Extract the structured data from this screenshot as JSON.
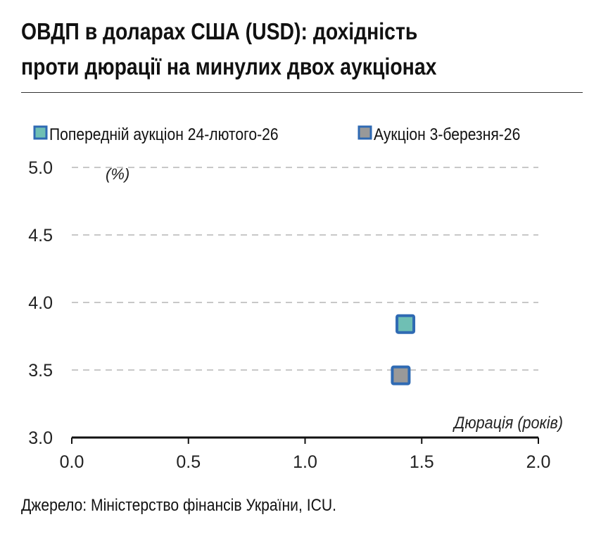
{
  "title_line1": "ОВДП в доларах США (USD): дохідність",
  "title_line2": "проти дюрації на минулих двох аукціонах",
  "source": "Джерело: Міністерство фінансів України, ICU.",
  "colors": {
    "previous": "#6fbfb4",
    "current": "#999999",
    "border": "#2f6ab3",
    "grid": "#c8c8c8"
  },
  "chart_data": {
    "type": "scatter",
    "xlabel": "Дюрація (років)",
    "ylabel": "(%)",
    "xlim": [
      0,
      2.0
    ],
    "ylim": [
      3.0,
      5.0
    ],
    "xticks": [
      "0.0",
      "0.5",
      "1.0",
      "1.5",
      "2.0"
    ],
    "yticks": [
      "3.0",
      "3.5",
      "4.0",
      "4.5",
      "5.0"
    ],
    "legend_position": "top",
    "grid": true,
    "series": [
      {
        "name": "Попередній аукціон 24-лютого-26",
        "points": [
          {
            "x": 1.43,
            "y": 3.84
          }
        ]
      },
      {
        "name": "Аукціон 3-березня-26",
        "points": [
          {
            "x": 1.41,
            "y": 3.46
          }
        ]
      }
    ]
  }
}
